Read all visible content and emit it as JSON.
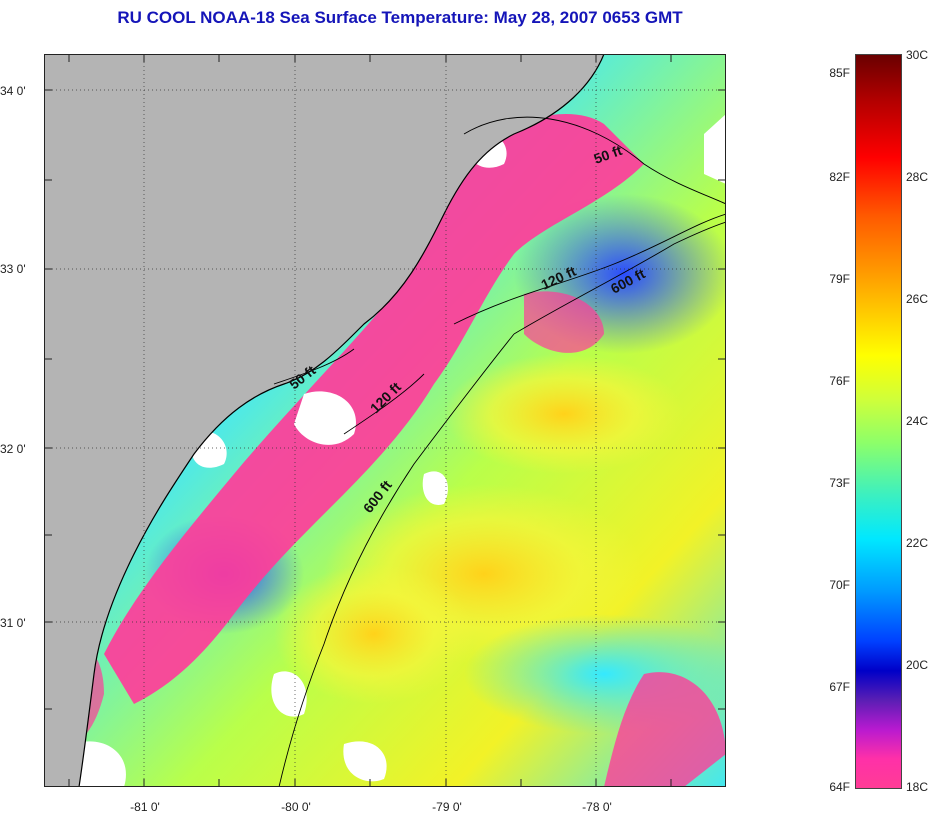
{
  "title": "RU COOL  NOAA-18  Sea Surface Temperature:  May 28, 2007 0653 GMT",
  "map": {
    "latitude_labels": [
      "34 0'",
      "33 0'",
      "32 0'",
      "31 0'"
    ],
    "longitude_labels": [
      "-81 0'",
      "-80 0'",
      "-79 0'",
      "-78 0'"
    ],
    "contour_labels": [
      "50 ft",
      "120 ft",
      "600 ft",
      "50 ft",
      "120 ft",
      "600 ft"
    ],
    "colors": {
      "land": "#b4b4b4",
      "cloud": "#ffffff",
      "coastline": "#000000"
    }
  },
  "colorbar": {
    "fahrenheit_labels": [
      "85F",
      "82F",
      "79F",
      "76F",
      "73F",
      "70F",
      "67F",
      "64F"
    ],
    "celsius_labels": [
      "30C",
      "28C",
      "26C",
      "24C",
      "22C",
      "20C",
      "18C"
    ]
  }
}
